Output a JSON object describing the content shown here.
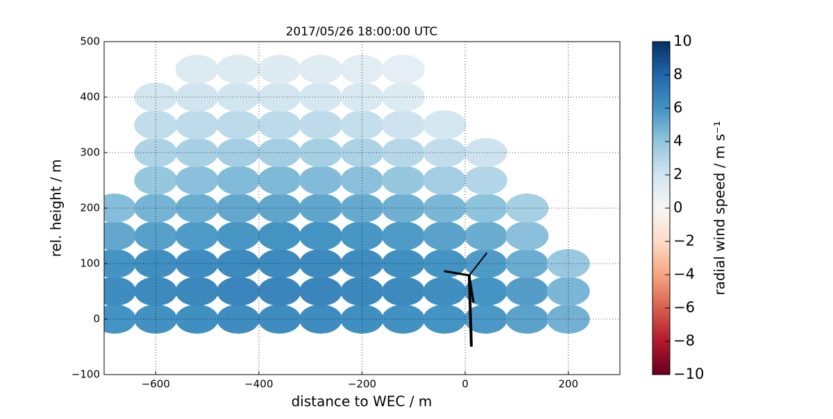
{
  "chart_data": {
    "type": "scatter",
    "title": "2017/05/26 18:00:00 UTC",
    "x_label": "distance to WEC / m",
    "y_label": "rel. height / m",
    "colorbar_label": "radial wind speed / m s⁻¹",
    "colormap": "RdBu",
    "clim": [
      -10,
      10
    ],
    "grid": true,
    "xlim": [
      -700,
      300
    ],
    "ylim": [
      -100,
      500
    ],
    "xticks": [
      {
        "value": -600,
        "label": "−600"
      },
      {
        "value": -400,
        "label": "−400"
      },
      {
        "value": -200,
        "label": "−200"
      },
      0,
      200
    ],
    "yticks": [
      {
        "value": -100,
        "label": "−100"
      },
      0,
      100,
      200,
      300,
      400,
      500
    ],
    "cticks": [
      {
        "value": -10,
        "label": "−10"
      },
      {
        "value": -8,
        "label": "−8"
      },
      {
        "value": -6,
        "label": "−6"
      },
      {
        "value": -4,
        "label": "−4"
      },
      {
        "value": -2,
        "label": "−2"
      },
      0,
      2,
      4,
      6,
      8,
      10
    ],
    "x": [
      -680,
      -600,
      -520,
      -440,
      -360,
      -280,
      -200,
      -120,
      -40,
      40,
      120,
      200,
      -680,
      -600,
      -520,
      -440,
      -360,
      -280,
      -200,
      -120,
      -40,
      40,
      120,
      200,
      -680,
      -600,
      -520,
      -440,
      -360,
      -280,
      -200,
      -120,
      -40,
      40,
      120,
      200,
      -680,
      -600,
      -520,
      -440,
      -360,
      -280,
      -200,
      -120,
      -40,
      40,
      120,
      -680,
      -600,
      -520,
      -440,
      -360,
      -280,
      -200,
      -120,
      -40,
      40,
      120,
      -600,
      -520,
      -440,
      -360,
      -280,
      -200,
      -120,
      -40,
      40,
      -600,
      -520,
      -440,
      -360,
      -280,
      -200,
      -120,
      -40,
      40,
      -600,
      -520,
      -440,
      -360,
      -280,
      -200,
      -120,
      -40,
      -600,
      -520,
      -440,
      -360,
      -280,
      -200,
      -120,
      -520,
      -440,
      -360,
      -280,
      -200,
      -120
    ],
    "y": [
      0,
      0,
      0,
      0,
      0,
      0,
      0,
      0,
      0,
      0,
      0,
      0,
      50,
      50,
      50,
      50,
      50,
      50,
      50,
      50,
      50,
      50,
      50,
      50,
      100,
      100,
      100,
      100,
      100,
      100,
      100,
      100,
      100,
      100,
      100,
      100,
      150,
      150,
      150,
      150,
      150,
      150,
      150,
      150,
      150,
      150,
      150,
      200,
      200,
      200,
      200,
      200,
      200,
      200,
      200,
      200,
      200,
      200,
      250,
      250,
      250,
      250,
      250,
      250,
      250,
      250,
      250,
      300,
      300,
      300,
      300,
      300,
      300,
      300,
      300,
      300,
      350,
      350,
      350,
      350,
      350,
      350,
      350,
      350,
      400,
      400,
      400,
      400,
      400,
      400,
      400,
      450,
      450,
      450,
      450,
      450,
      450
    ],
    "color_values": [
      6.0,
      6.1,
      6.2,
      6.3,
      6.3,
      6.3,
      6.2,
      6.1,
      6.0,
      5.8,
      5.4,
      4.8,
      6.3,
      6.4,
      6.5,
      6.6,
      6.6,
      6.6,
      6.5,
      6.4,
      6.2,
      6.0,
      5.6,
      4.6,
      6.0,
      6.2,
      6.3,
      6.4,
      6.4,
      6.4,
      6.3,
      6.2,
      6.0,
      5.7,
      5.0,
      3.8,
      5.2,
      5.5,
      5.7,
      5.9,
      6.0,
      6.0,
      5.9,
      5.7,
      5.4,
      5.0,
      4.2,
      4.3,
      4.7,
      5.0,
      5.2,
      5.3,
      5.3,
      5.1,
      4.9,
      4.6,
      4.1,
      3.4,
      3.9,
      4.2,
      4.4,
      4.5,
      4.4,
      4.2,
      3.9,
      3.5,
      3.0,
      3.1,
      3.3,
      3.5,
      3.5,
      3.4,
      3.2,
      2.9,
      2.5,
      2.1,
      2.5,
      2.6,
      2.7,
      2.7,
      2.6,
      2.4,
      2.1,
      1.8,
      1.9,
      2.0,
      2.0,
      1.9,
      1.8,
      1.6,
      1.4,
      1.4,
      1.4,
      1.3,
      1.2,
      1.1,
      1.0
    ]
  }
}
